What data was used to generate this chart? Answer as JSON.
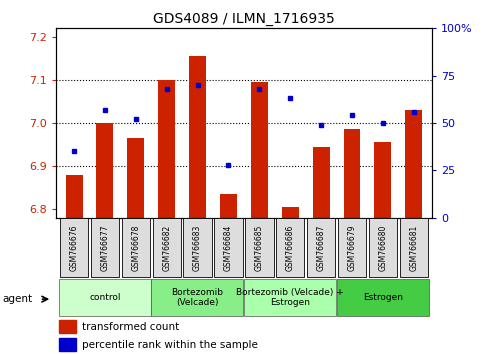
{
  "title": "GDS4089 / ILMN_1716935",
  "samples": [
    "GSM766676",
    "GSM766677",
    "GSM766678",
    "GSM766682",
    "GSM766683",
    "GSM766684",
    "GSM766685",
    "GSM766686",
    "GSM766687",
    "GSM766679",
    "GSM766680",
    "GSM766681"
  ],
  "transformed_count": [
    6.88,
    7.0,
    6.965,
    7.1,
    7.155,
    6.835,
    7.095,
    6.805,
    6.945,
    6.985,
    6.955,
    7.03
  ],
  "percentile_rank": [
    35,
    57,
    52,
    68,
    70,
    28,
    68,
    63,
    49,
    54,
    50,
    56
  ],
  "ylim_left": [
    6.78,
    7.22
  ],
  "ylim_right": [
    0,
    100
  ],
  "yticks_left": [
    6.8,
    6.9,
    7.0,
    7.1,
    7.2
  ],
  "yticks_right": [
    0,
    25,
    50,
    75,
    100
  ],
  "ytick_labels_right": [
    "0",
    "25",
    "50",
    "75",
    "100%"
  ],
  "bar_color": "#CC2200",
  "dot_color": "#0000CC",
  "groups": [
    {
      "label": "control",
      "start": 0,
      "end": 3,
      "color": "#CCFFCC"
    },
    {
      "label": "Bortezomib\n(Velcade)",
      "start": 3,
      "end": 6,
      "color": "#88EE88"
    },
    {
      "label": "Bortezomib (Velcade) +\nEstrogen",
      "start": 6,
      "end": 9,
      "color": "#AAFFAA"
    },
    {
      "label": "Estrogen",
      "start": 9,
      "end": 12,
      "color": "#44CC44"
    }
  ],
  "legend_items": [
    "transformed count",
    "percentile rank within the sample"
  ],
  "agent_label": "agent"
}
